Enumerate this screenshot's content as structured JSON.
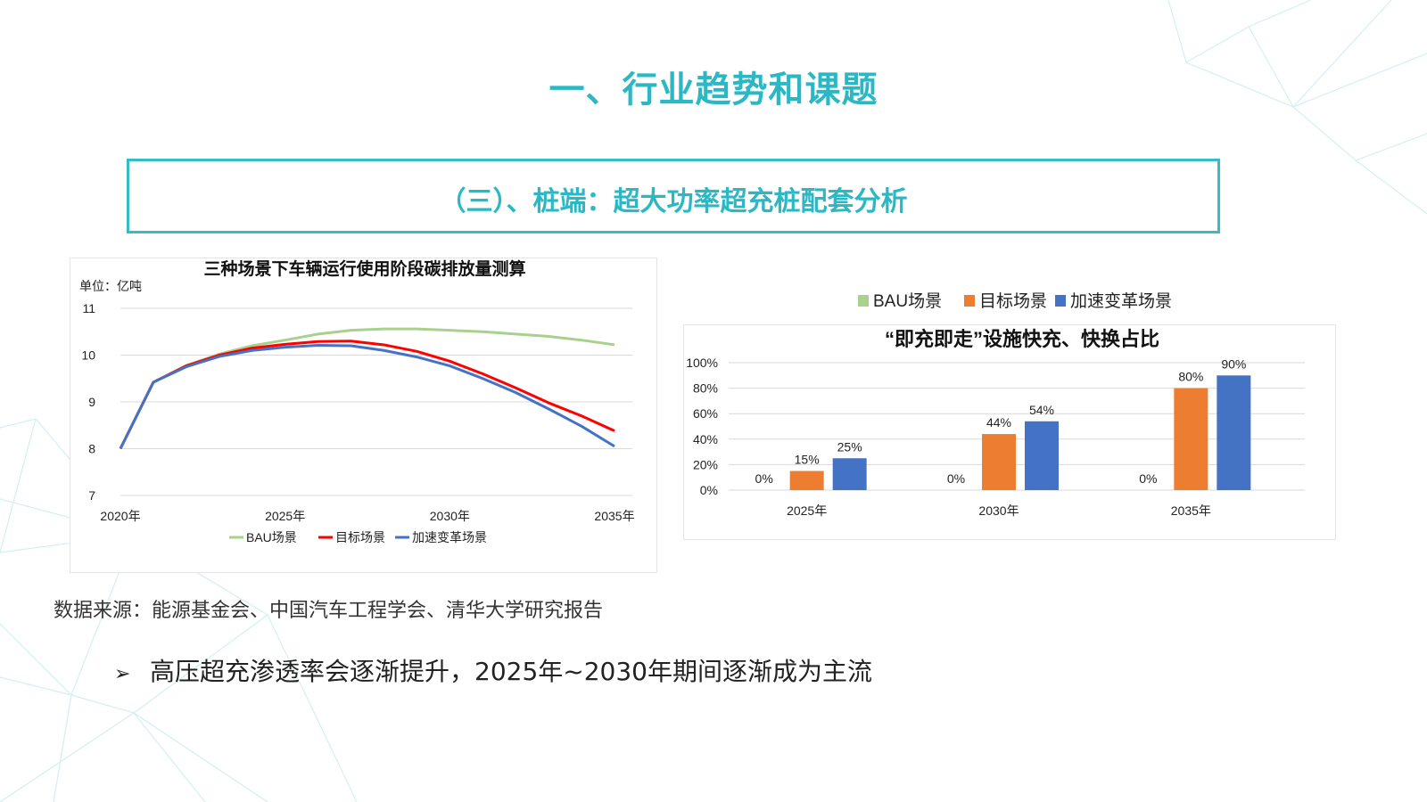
{
  "page": {
    "title": "一、行业趋势和课题",
    "subtitle": "（三）、桩端：超大功率超充桩配套分析",
    "source": "数据来源：能源基金会、中国汽车工程学会、清华大学研究报告",
    "bullet": "高压超充渗透率会逐渐提升，2025年~2030年期间逐渐成为主流",
    "bullet_icon": "arrow-right-icon"
  },
  "colors": {
    "accent": "#2bb8c4",
    "bau": "#a9d18e",
    "target": "#ff0000",
    "accel": "#4472c4",
    "bar_target": "#ed7d31",
    "bar_accel": "#4472c4"
  },
  "chart_data": [
    {
      "type": "line",
      "title": "三种场景下车辆运行使用阶段碳排放量测算",
      "unit_label": "单位：亿吨",
      "ylim": [
        7,
        11
      ],
      "yticks": [
        7,
        8,
        9,
        10,
        11
      ],
      "xlim": [
        2020,
        2035
      ],
      "xticks": [
        "2020年",
        "2025年",
        "2030年",
        "2035年"
      ],
      "xtick_values": [
        2020,
        2025,
        2030,
        2035
      ],
      "grid": true,
      "legend_position": "bottom",
      "series": [
        {
          "name": "BAU场景",
          "color": "#a9d18e",
          "x": [
            2020,
            2021,
            2022,
            2023,
            2024,
            2025,
            2026,
            2027,
            2028,
            2029,
            2030,
            2031,
            2032,
            2033,
            2034,
            2035
          ],
          "y": [
            8.0,
            9.42,
            9.78,
            10.02,
            10.2,
            10.32,
            10.45,
            10.53,
            10.56,
            10.56,
            10.53,
            10.5,
            10.45,
            10.4,
            10.32,
            10.22
          ]
        },
        {
          "name": "目标场景",
          "color": "#ff0000",
          "x": [
            2020,
            2021,
            2022,
            2023,
            2024,
            2025,
            2026,
            2027,
            2028,
            2029,
            2030,
            2031,
            2032,
            2033,
            2034,
            2035
          ],
          "y": [
            8.0,
            9.42,
            9.77,
            10.0,
            10.15,
            10.23,
            10.29,
            10.3,
            10.22,
            10.08,
            9.87,
            9.6,
            9.3,
            8.98,
            8.7,
            8.38
          ]
        },
        {
          "name": "加速变革场景",
          "color": "#4472c4",
          "x": [
            2020,
            2021,
            2022,
            2023,
            2024,
            2025,
            2026,
            2027,
            2028,
            2029,
            2030,
            2031,
            2032,
            2033,
            2034,
            2035
          ],
          "y": [
            8.0,
            9.42,
            9.75,
            9.97,
            10.1,
            10.17,
            10.21,
            10.2,
            10.1,
            9.96,
            9.77,
            9.5,
            9.2,
            8.85,
            8.48,
            8.05
          ]
        }
      ]
    },
    {
      "type": "bar",
      "title": "“即充即走”设施快充、快换占比",
      "categories": [
        "2025年",
        "2030年",
        "2035年"
      ],
      "ylim": [
        0,
        100
      ],
      "yticks": [
        "0%",
        "20%",
        "40%",
        "60%",
        "80%",
        "100%"
      ],
      "ytick_values": [
        0,
        20,
        40,
        60,
        80,
        100
      ],
      "grid": true,
      "legend_position": "top",
      "series": [
        {
          "name": "BAU场景",
          "color": "#a9d18e",
          "values": [
            0,
            0,
            0
          ],
          "labels": [
            "0%",
            "0%",
            "0%"
          ]
        },
        {
          "name": "目标场景",
          "color": "#ed7d31",
          "values": [
            15,
            44,
            80
          ],
          "labels": [
            "15%",
            "44%",
            "80%"
          ]
        },
        {
          "name": "加速变革场景",
          "color": "#4472c4",
          "values": [
            25,
            54,
            90
          ],
          "labels": [
            "25%",
            "54%",
            "90%"
          ]
        }
      ]
    }
  ]
}
